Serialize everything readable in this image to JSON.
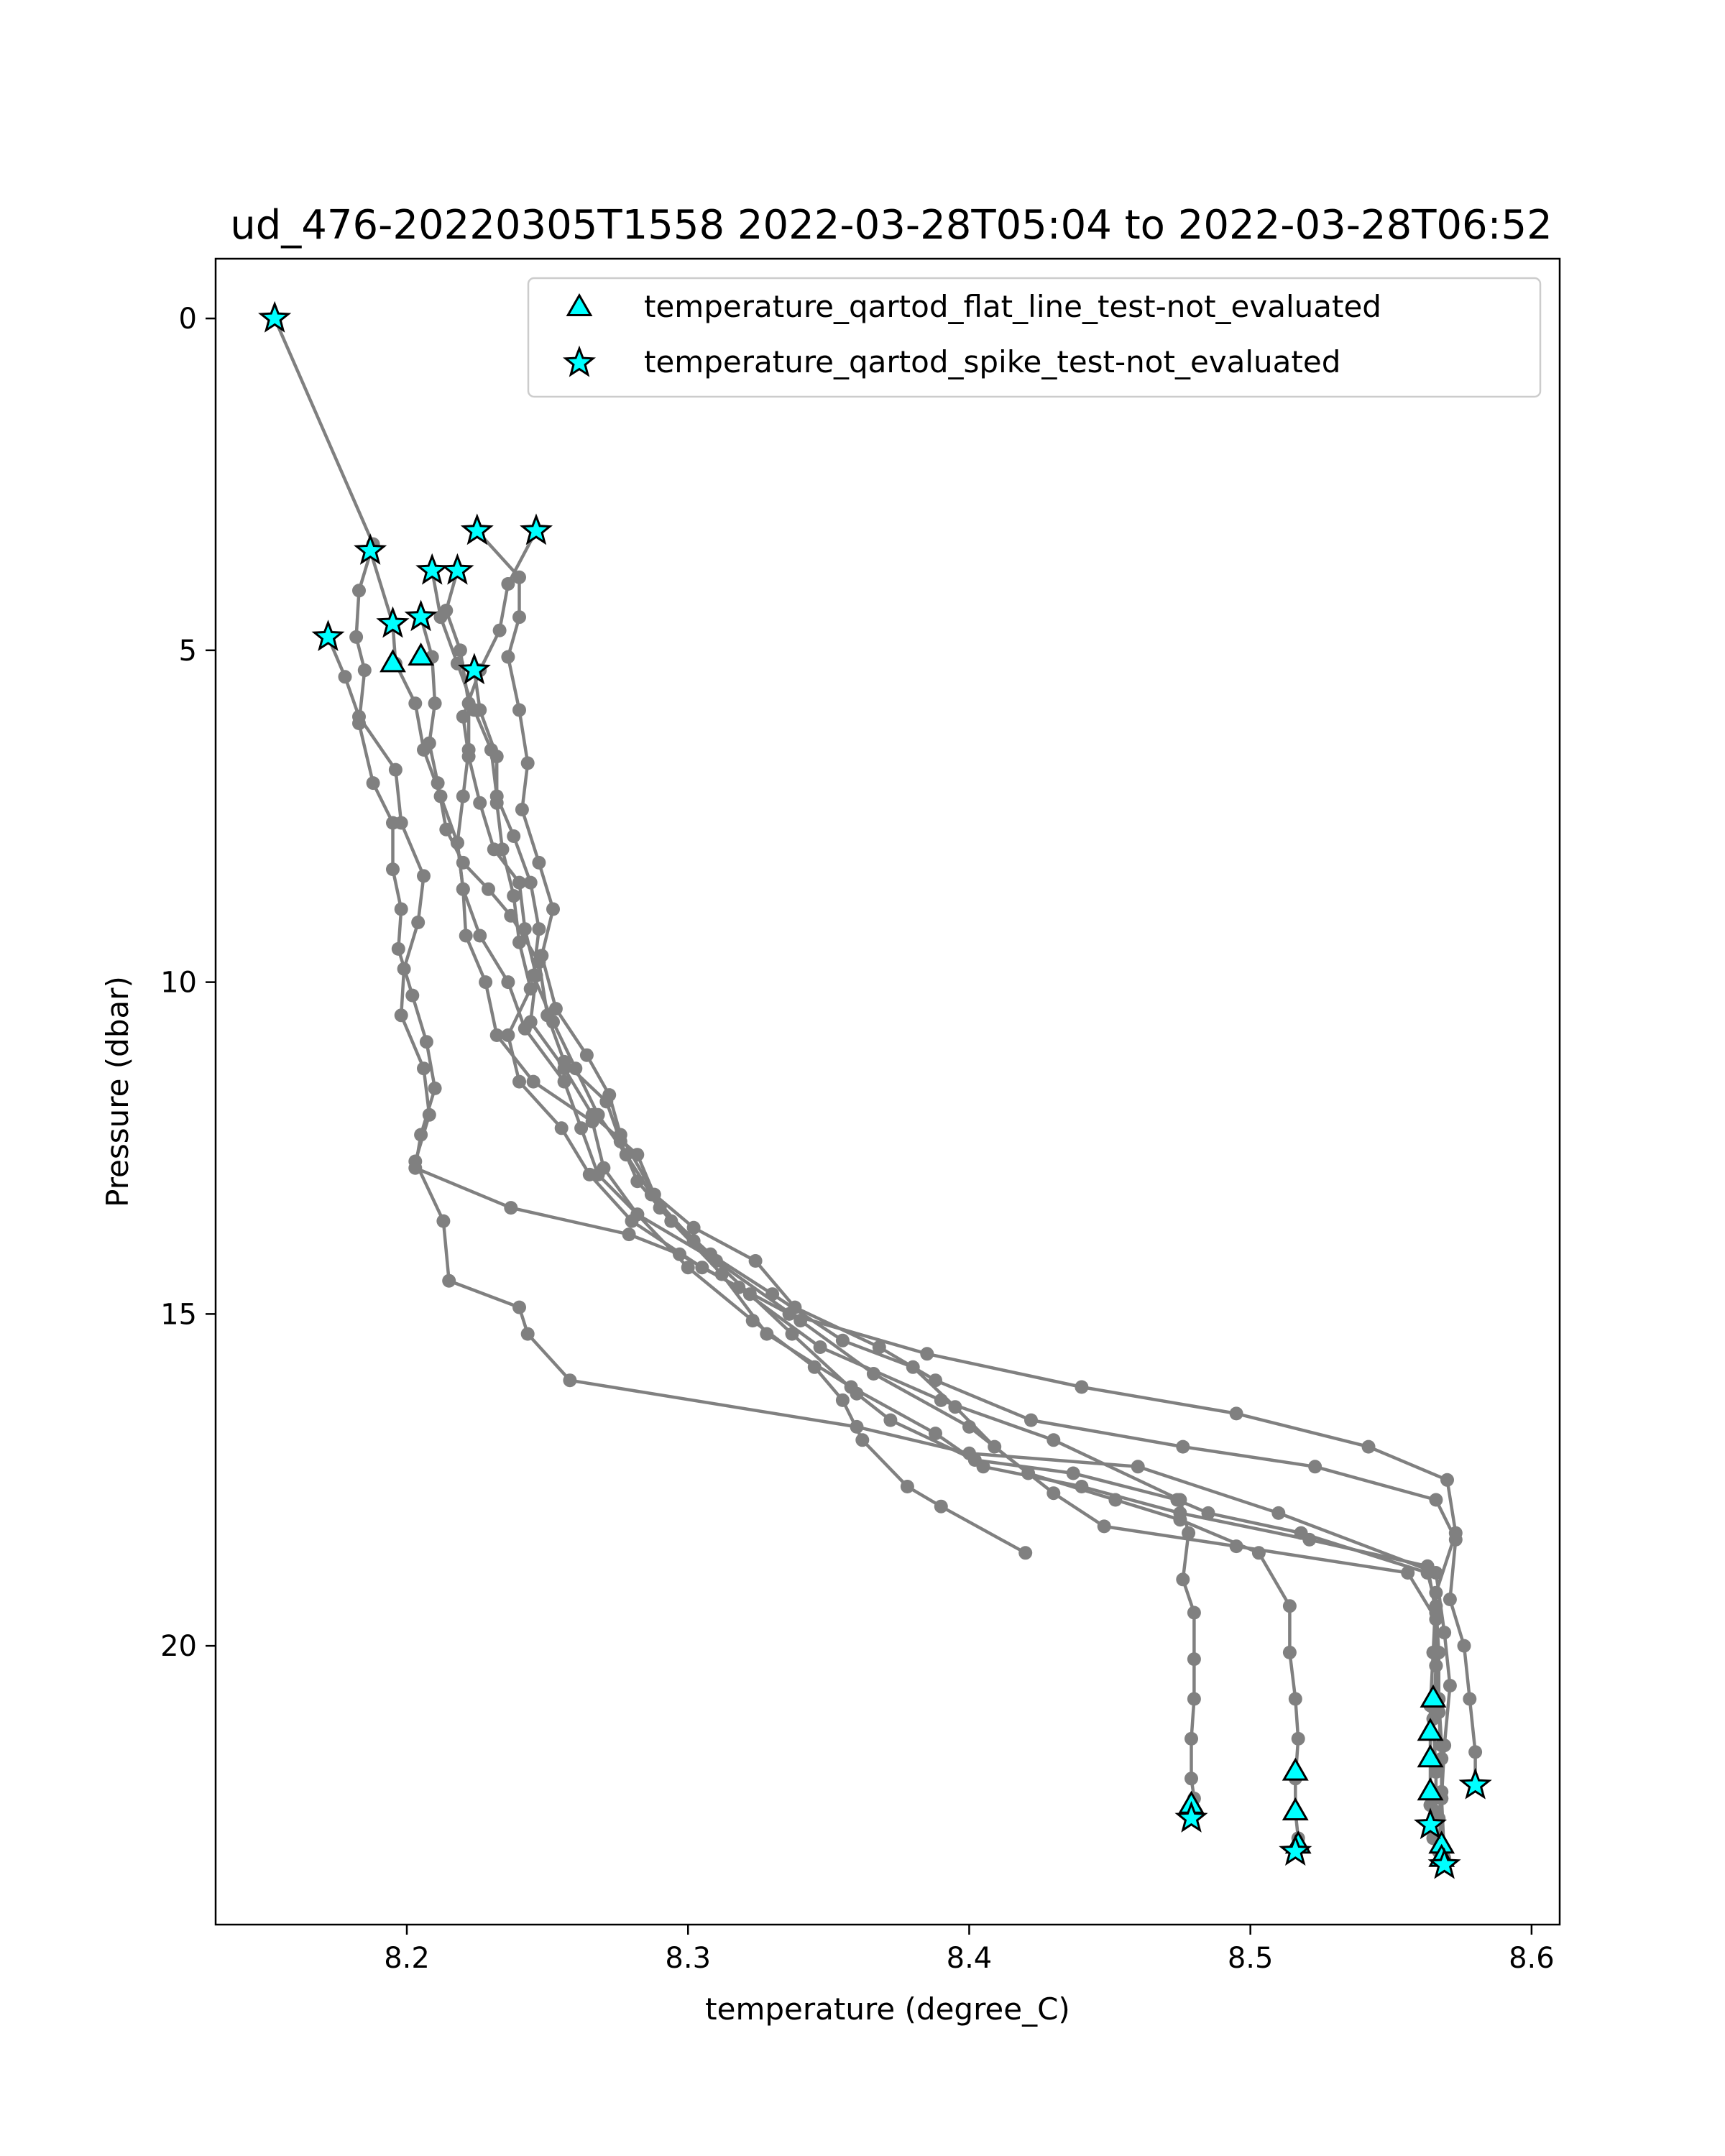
{
  "chart_data": {
    "type": "scatter",
    "title": "ud_476-20220305T1558 2022-03-28T05:04 to 2022-03-28T06:52",
    "xlabel": "temperature (degree_C)",
    "ylabel": "Pressure (dbar)",
    "xlim": [
      8.132,
      8.61
    ],
    "ylim": [
      24.2,
      -0.9
    ],
    "y_inverted": true,
    "grid": false,
    "legend_position": "upper right",
    "x_ticks": [
      8.2,
      8.3,
      8.4,
      8.5,
      8.6
    ],
    "x_tick_labels": [
      "8.2",
      "8.3",
      "8.4",
      "8.5",
      "8.6"
    ],
    "y_ticks": [
      0,
      5,
      10,
      15,
      20
    ],
    "y_tick_labels": [
      "0",
      "5",
      "10",
      "15",
      "20"
    ],
    "colors": {
      "profile_line": "#808080",
      "marker_fill": "#00ffff",
      "marker_edge": "#000000"
    },
    "series": [
      {
        "role": "profile",
        "points": [
          [
            8.153,
            0.0
          ],
          [
            8.188,
            3.4
          ],
          [
            8.183,
            4.1
          ],
          [
            8.182,
            4.8
          ],
          [
            8.185,
            5.3
          ],
          [
            8.183,
            6.1
          ],
          [
            8.188,
            7.0
          ],
          [
            8.195,
            7.6
          ],
          [
            8.195,
            8.3
          ],
          [
            8.198,
            8.9
          ],
          [
            8.197,
            9.5
          ],
          [
            8.202,
            10.2
          ],
          [
            8.207,
            10.9
          ],
          [
            8.21,
            11.6
          ],
          [
            8.205,
            12.3
          ],
          [
            8.203,
            12.8
          ],
          [
            8.237,
            13.4
          ],
          [
            8.279,
            13.8
          ],
          [
            8.297,
            14.1
          ],
          [
            8.318,
            14.6
          ],
          [
            8.347,
            15.5
          ],
          [
            8.39,
            16.3
          ],
          [
            8.43,
            16.9
          ],
          [
            8.475,
            17.8
          ],
          [
            8.478,
            18.3
          ],
          [
            8.476,
            19.0
          ],
          [
            8.48,
            19.5
          ],
          [
            8.48,
            20.2
          ],
          [
            8.48,
            20.8
          ],
          [
            8.479,
            21.4
          ],
          [
            8.479,
            22.0
          ],
          [
            8.48,
            22.3
          ],
          [
            8.479,
            22.6
          ]
        ]
      },
      {
        "role": "profile",
        "points": [
          [
            8.172,
            4.8
          ],
          [
            8.178,
            5.4
          ],
          [
            8.183,
            6.0
          ],
          [
            8.196,
            6.8
          ],
          [
            8.198,
            7.6
          ],
          [
            8.206,
            8.4
          ],
          [
            8.204,
            9.1
          ],
          [
            8.199,
            9.8
          ],
          [
            8.198,
            10.5
          ],
          [
            8.206,
            11.3
          ],
          [
            8.208,
            12.0
          ],
          [
            8.203,
            12.7
          ],
          [
            8.213,
            13.6
          ],
          [
            8.215,
            14.5
          ],
          [
            8.24,
            14.9
          ],
          [
            8.243,
            15.3
          ],
          [
            8.258,
            16.0
          ],
          [
            8.36,
            16.7
          ],
          [
            8.4,
            17.1
          ],
          [
            8.46,
            17.3
          ],
          [
            8.51,
            18.0
          ],
          [
            8.566,
            18.9
          ],
          [
            8.569,
            19.8
          ],
          [
            8.571,
            20.6
          ],
          [
            8.569,
            21.5
          ],
          [
            8.568,
            22.3
          ],
          [
            8.567,
            23.1
          ],
          [
            8.569,
            23.3
          ]
        ]
      },
      {
        "role": "profile",
        "points": [
          [
            8.187,
            3.5
          ],
          [
            8.195,
            4.6
          ],
          [
            8.196,
            5.2
          ],
          [
            8.203,
            5.8
          ],
          [
            8.206,
            6.5
          ],
          [
            8.212,
            7.2
          ],
          [
            8.218,
            7.9
          ],
          [
            8.22,
            8.6
          ],
          [
            8.226,
            9.3
          ],
          [
            8.236,
            10.0
          ],
          [
            8.242,
            10.7
          ],
          [
            8.256,
            11.5
          ],
          [
            8.262,
            12.2
          ],
          [
            8.268,
            12.9
          ],
          [
            8.282,
            13.5
          ],
          [
            8.31,
            14.2
          ],
          [
            8.34,
            15.1
          ],
          [
            8.366,
            15.9
          ],
          [
            8.4,
            16.7
          ],
          [
            8.421,
            17.4
          ],
          [
            8.452,
            17.8
          ],
          [
            8.475,
            18.1
          ],
          [
            8.503,
            18.6
          ],
          [
            8.514,
            19.4
          ],
          [
            8.514,
            20.1
          ],
          [
            8.516,
            20.8
          ],
          [
            8.517,
            21.4
          ],
          [
            8.516,
            22.0
          ],
          [
            8.516,
            22.5
          ],
          [
            8.517,
            22.9
          ],
          [
            8.516,
            23.1
          ]
        ]
      },
      {
        "role": "profile",
        "points": [
          [
            8.205,
            4.5
          ],
          [
            8.209,
            5.1
          ],
          [
            8.21,
            5.8
          ],
          [
            8.208,
            6.4
          ],
          [
            8.211,
            7.0
          ],
          [
            8.214,
            7.7
          ],
          [
            8.22,
            8.2
          ],
          [
            8.229,
            8.6
          ],
          [
            8.237,
            9.0
          ],
          [
            8.247,
            9.7
          ],
          [
            8.25,
            10.5
          ],
          [
            8.256,
            11.2
          ],
          [
            8.271,
            11.8
          ],
          [
            8.276,
            12.4
          ],
          [
            8.282,
            13.0
          ],
          [
            8.294,
            13.6
          ],
          [
            8.312,
            14.4
          ],
          [
            8.328,
            15.3
          ],
          [
            8.358,
            16.1
          ],
          [
            8.388,
            16.8
          ],
          [
            8.405,
            17.3
          ],
          [
            8.44,
            17.6
          ],
          [
            8.475,
            18.0
          ],
          [
            8.521,
            18.4
          ],
          [
            8.563,
            18.8
          ],
          [
            8.566,
            19.5
          ],
          [
            8.566,
            20.3
          ],
          [
            8.565,
            21.1
          ],
          [
            8.566,
            21.9
          ],
          [
            8.566,
            22.5
          ],
          [
            8.565,
            22.9
          ]
        ]
      },
      {
        "role": "profile",
        "points": [
          [
            8.209,
            3.8
          ],
          [
            8.212,
            4.5
          ],
          [
            8.218,
            5.2
          ],
          [
            8.224,
            5.9
          ],
          [
            8.23,
            6.5
          ],
          [
            8.232,
            7.2
          ],
          [
            8.238,
            7.8
          ],
          [
            8.244,
            8.5
          ],
          [
            8.247,
            9.2
          ],
          [
            8.245,
            9.9
          ],
          [
            8.252,
            10.6
          ],
          [
            8.26,
            11.3
          ],
          [
            8.268,
            12.0
          ],
          [
            8.278,
            12.6
          ],
          [
            8.287,
            13.2
          ],
          [
            8.302,
            13.9
          ],
          [
            8.322,
            14.7
          ],
          [
            8.337,
            15.3
          ],
          [
            8.36,
            16.2
          ],
          [
            8.372,
            16.6
          ],
          [
            8.402,
            17.2
          ],
          [
            8.437,
            17.4
          ],
          [
            8.474,
            17.8
          ],
          [
            8.485,
            18.0
          ],
          [
            8.518,
            18.3
          ],
          [
            8.563,
            18.9
          ],
          [
            8.566,
            19.4
          ],
          [
            8.567,
            20.1
          ],
          [
            8.567,
            20.8
          ],
          [
            8.568,
            21.5
          ],
          [
            8.568,
            22.2
          ],
          [
            8.567,
            22.6
          ]
        ]
      },
      {
        "role": "profile",
        "points": [
          [
            8.218,
            3.8
          ],
          [
            8.214,
            4.4
          ],
          [
            8.219,
            5.0
          ],
          [
            8.222,
            5.8
          ],
          [
            8.222,
            6.5
          ],
          [
            8.22,
            7.2
          ],
          [
            8.218,
            7.9
          ],
          [
            8.22,
            8.6
          ],
          [
            8.221,
            9.3
          ],
          [
            8.228,
            10.0
          ],
          [
            8.232,
            10.8
          ],
          [
            8.245,
            11.5
          ],
          [
            8.266,
            12.1
          ],
          [
            8.27,
            12.8
          ],
          [
            8.282,
            13.5
          ],
          [
            8.3,
            14.3
          ],
          [
            8.323,
            15.1
          ],
          [
            8.345,
            15.8
          ],
          [
            8.355,
            16.3
          ],
          [
            8.362,
            16.9
          ],
          [
            8.378,
            17.6
          ],
          [
            8.39,
            17.9
          ],
          [
            8.42,
            18.6
          ]
        ]
      },
      {
        "role": "profile",
        "points": [
          [
            8.225,
            3.2
          ],
          [
            8.24,
            3.9
          ],
          [
            8.24,
            4.5
          ],
          [
            8.236,
            5.1
          ],
          [
            8.24,
            5.9
          ],
          [
            8.243,
            6.7
          ],
          [
            8.241,
            7.4
          ],
          [
            8.247,
            8.2
          ],
          [
            8.252,
            8.9
          ],
          [
            8.248,
            9.6
          ],
          [
            8.253,
            10.4
          ],
          [
            8.264,
            11.1
          ],
          [
            8.272,
            11.7
          ],
          [
            8.276,
            12.3
          ],
          [
            8.288,
            13.2
          ],
          [
            8.302,
            13.7
          ],
          [
            8.324,
            14.2
          ],
          [
            8.338,
            14.9
          ],
          [
            8.368,
            15.5
          ],
          [
            8.388,
            16.0
          ],
          [
            8.422,
            16.6
          ],
          [
            8.476,
            17.0
          ],
          [
            8.523,
            17.3
          ],
          [
            8.566,
            17.8
          ],
          [
            8.573,
            18.4
          ],
          [
            8.571,
            19.3
          ],
          [
            8.576,
            20.0
          ],
          [
            8.578,
            20.8
          ],
          [
            8.58,
            21.6
          ],
          [
            8.58,
            22.1
          ]
        ]
      },
      {
        "role": "profile",
        "points": [
          [
            8.246,
            3.2
          ],
          [
            8.236,
            4.0
          ],
          [
            8.233,
            4.7
          ],
          [
            8.226,
            5.3
          ],
          [
            8.22,
            6.0
          ],
          [
            8.222,
            6.6
          ],
          [
            8.226,
            7.3
          ],
          [
            8.231,
            8.0
          ],
          [
            8.24,
            8.5
          ],
          [
            8.242,
            9.2
          ],
          [
            8.246,
            9.9
          ],
          [
            8.244,
            10.6
          ],
          [
            8.256,
            11.3
          ],
          [
            8.266,
            12.0
          ],
          [
            8.282,
            12.6
          ],
          [
            8.29,
            13.4
          ],
          [
            8.308,
            14.1
          ],
          [
            8.33,
            14.7
          ],
          [
            8.355,
            15.4
          ],
          [
            8.38,
            15.8
          ],
          [
            8.395,
            16.4
          ],
          [
            8.409,
            17.0
          ],
          [
            8.43,
            17.7
          ],
          [
            8.448,
            18.2
          ],
          [
            8.495,
            18.5
          ],
          [
            8.556,
            18.9
          ],
          [
            8.566,
            19.6
          ],
          [
            8.566,
            20.3
          ],
          [
            8.567,
            21.0
          ],
          [
            8.568,
            21.7
          ],
          [
            8.568,
            22.3
          ],
          [
            8.569,
            23.2
          ]
        ]
      },
      {
        "role": "profile",
        "points": [
          [
            8.224,
            5.3
          ],
          [
            8.226,
            5.9
          ],
          [
            8.232,
            6.6
          ],
          [
            8.232,
            7.3
          ],
          [
            8.234,
            8.0
          ],
          [
            8.238,
            8.7
          ],
          [
            8.24,
            9.4
          ],
          [
            8.244,
            10.1
          ],
          [
            8.236,
            10.8
          ],
          [
            8.24,
            11.5
          ],
          [
            8.255,
            12.2
          ],
          [
            8.265,
            12.9
          ],
          [
            8.28,
            13.6
          ],
          [
            8.305,
            14.3
          ],
          [
            8.336,
            15.0
          ],
          [
            8.385,
            15.6
          ],
          [
            8.44,
            16.1
          ],
          [
            8.495,
            16.5
          ],
          [
            8.542,
            17.0
          ],
          [
            8.57,
            17.5
          ],
          [
            8.573,
            18.3
          ],
          [
            8.566,
            19.2
          ],
          [
            8.565,
            20.1
          ],
          [
            8.564,
            20.9
          ],
          [
            8.564,
            21.7
          ],
          [
            8.564,
            22.4
          ],
          [
            8.564,
            22.7
          ]
        ]
      }
    ],
    "legend": [
      {
        "label": "temperature_qartod_flat_line_test-not_evaluated",
        "marker": "triangle"
      },
      {
        "label": "temperature_qartod_spike_test-not_evaluated",
        "marker": "star"
      }
    ],
    "flat_line_points": [
      [
        8.195,
        5.2
      ],
      [
        8.205,
        5.1
      ],
      [
        8.479,
        22.4
      ],
      [
        8.516,
        21.9
      ],
      [
        8.516,
        22.5
      ],
      [
        8.517,
        23.0
      ],
      [
        8.565,
        20.8
      ],
      [
        8.564,
        21.3
      ],
      [
        8.564,
        21.7
      ],
      [
        8.564,
        22.2
      ],
      [
        8.568,
        23.0
      ],
      [
        8.568,
        23.2
      ]
    ],
    "spike_points": [
      [
        8.153,
        0.0
      ],
      [
        8.187,
        3.5
      ],
      [
        8.225,
        3.2
      ],
      [
        8.246,
        3.2
      ],
      [
        8.209,
        3.8
      ],
      [
        8.218,
        3.8
      ],
      [
        8.205,
        4.5
      ],
      [
        8.195,
        4.6
      ],
      [
        8.172,
        4.8
      ],
      [
        8.224,
        5.3
      ],
      [
        8.479,
        22.6
      ],
      [
        8.516,
        23.1
      ],
      [
        8.564,
        22.7
      ],
      [
        8.569,
        23.3
      ],
      [
        8.58,
        22.1
      ]
    ]
  }
}
